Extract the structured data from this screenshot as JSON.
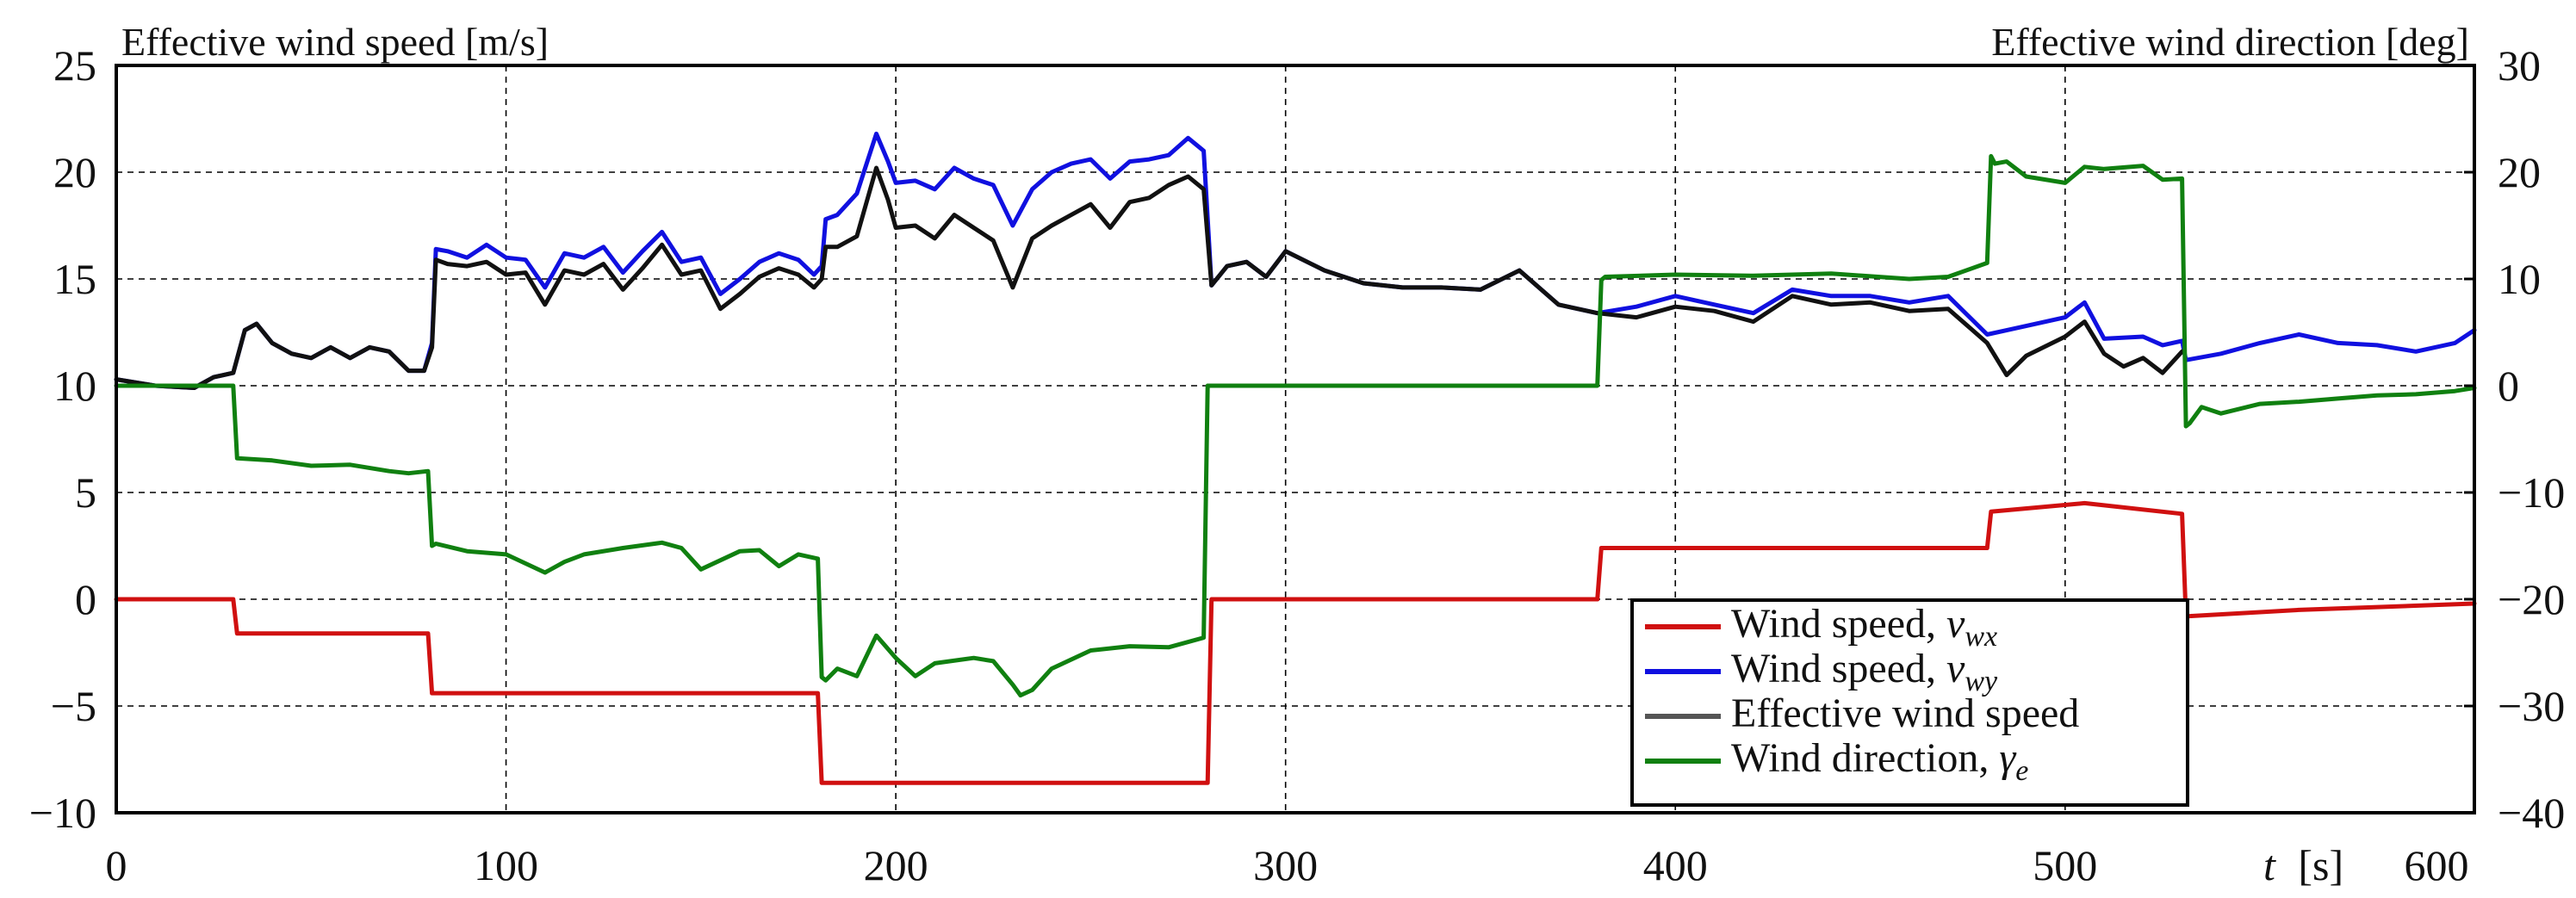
{
  "chart_data": {
    "type": "line",
    "title": "",
    "xlabel_var": "t",
    "xlabel_unit": "[s]",
    "ylabel_left": "Effective wind speed [m/s]",
    "ylabel_right": "Effective wind direction [deg]",
    "xlim": [
      0,
      605
    ],
    "ylim_left": [
      -10,
      25
    ],
    "ylim_right": [
      -40,
      30
    ],
    "xticks": [
      "0",
      "100",
      "200",
      "300",
      "400",
      "500"
    ],
    "xtick_values": [
      0,
      100,
      200,
      300,
      400,
      500
    ],
    "xtick_extra": "600",
    "yticks_left": [
      "−10",
      "−5",
      "0",
      "5",
      "10",
      "15",
      "20",
      "25"
    ],
    "ytick_left_values": [
      -10,
      -5,
      0,
      5,
      10,
      15,
      20,
      25
    ],
    "yticks_right": [
      "−40",
      "−30",
      "−20",
      "−10",
      "0",
      "10",
      "20",
      "30"
    ],
    "ytick_right_values": [
      -40,
      -30,
      -20,
      -10,
      0,
      10,
      20,
      30
    ],
    "grid": true,
    "legend_position": "bottom-right",
    "legend": [
      {
        "text": "Wind speed, ",
        "sym": "v",
        "sub": "wx",
        "color": "#d01010"
      },
      {
        "text": "Wind speed, ",
        "sym": "v",
        "sub": "wy",
        "color": "#1010e0"
      },
      {
        "text": "Effective wind speed",
        "sym": "",
        "sub": "",
        "color": "#555555"
      },
      {
        "text": "Wind direction, ",
        "sym": "γ",
        "sub": "e",
        "color": "#108010"
      }
    ],
    "series": [
      {
        "name": "Wind speed, v_wx",
        "color": "#d01010",
        "axis": "left",
        "x": [
          0,
          30,
          31,
          80,
          81,
          180,
          181,
          280,
          281,
          380,
          381,
          480,
          481,
          505,
          530,
          531,
          560,
          605
        ],
        "y": [
          0,
          0,
          -1.6,
          -1.6,
          -4.4,
          -4.4,
          -8.6,
          -8.6,
          0,
          0,
          2.4,
          2.4,
          4.1,
          4.5,
          4.0,
          -0.8,
          -0.5,
          -0.2
        ]
      },
      {
        "name": "Wind speed, v_wy",
        "color": "#1010e0",
        "axis": "left",
        "x": [
          0,
          10,
          20,
          25,
          30,
          33,
          36,
          40,
          45,
          50,
          55,
          60,
          65,
          70,
          75,
          79,
          81,
          82,
          85,
          90,
          95,
          100,
          105,
          110,
          115,
          120,
          125,
          130,
          135,
          140,
          145,
          150,
          155,
          160,
          165,
          170,
          175,
          179,
          181,
          182,
          185,
          190,
          195,
          198,
          200,
          205,
          210,
          215,
          220,
          225,
          230,
          235,
          240,
          245,
          250,
          255,
          260,
          265,
          270,
          275,
          279,
          281,
          285,
          290,
          295,
          300,
          310,
          320,
          330,
          340,
          350,
          360,
          370,
          380,
          390,
          400,
          410,
          420,
          430,
          440,
          450,
          460,
          470,
          480,
          490,
          500,
          505,
          510,
          520,
          525,
          530,
          531,
          540,
          550,
          560,
          570,
          580,
          590,
          600,
          605
        ],
        "y": [
          10.3,
          10.0,
          9.9,
          10.4,
          10.6,
          12.6,
          12.9,
          12.0,
          11.5,
          11.3,
          11.8,
          11.3,
          11.8,
          11.6,
          10.7,
          10.7,
          12.0,
          16.4,
          16.3,
          16.0,
          16.6,
          16.0,
          15.9,
          14.6,
          16.2,
          16.0,
          16.5,
          15.3,
          16.3,
          17.2,
          15.8,
          16.0,
          14.3,
          15.0,
          15.8,
          16.2,
          15.9,
          15.2,
          15.6,
          17.8,
          18.0,
          19.0,
          21.8,
          20.5,
          19.5,
          19.6,
          19.2,
          20.2,
          19.7,
          19.4,
          17.5,
          19.2,
          20.0,
          20.4,
          20.6,
          19.7,
          20.5,
          20.6,
          20.8,
          21.6,
          21.0,
          14.7,
          15.6,
          15.8,
          15.1,
          16.3,
          15.4,
          14.8,
          14.6,
          14.6,
          14.5,
          15.4,
          13.8,
          13.4,
          13.7,
          14.2,
          13.8,
          13.4,
          14.5,
          14.2,
          14.2,
          13.9,
          14.2,
          12.4,
          12.8,
          13.2,
          13.9,
          12.2,
          12.3,
          11.9,
          12.1,
          11.2,
          11.5,
          12.0,
          12.4,
          12.0,
          11.9,
          11.6,
          12.0,
          12.6
        ]
      },
      {
        "name": "Effective wind speed",
        "color": "#111111",
        "axis": "left",
        "x": [
          0,
          10,
          20,
          25,
          30,
          33,
          36,
          40,
          45,
          50,
          55,
          60,
          65,
          70,
          75,
          79,
          81,
          82,
          85,
          90,
          95,
          100,
          105,
          110,
          115,
          120,
          125,
          130,
          135,
          140,
          145,
          150,
          155,
          160,
          165,
          170,
          175,
          179,
          181,
          182,
          185,
          190,
          195,
          198,
          200,
          205,
          210,
          215,
          220,
          225,
          230,
          235,
          240,
          245,
          250,
          255,
          260,
          265,
          270,
          275,
          279,
          281,
          285,
          290,
          295,
          300,
          310,
          320,
          330,
          340,
          350,
          360,
          370,
          380,
          390,
          400,
          410,
          420,
          430,
          440,
          450,
          460,
          470,
          480,
          485,
          490,
          500,
          505,
          510,
          515,
          520,
          525,
          530
        ],
        "y": [
          10.3,
          10.0,
          9.9,
          10.4,
          10.6,
          12.6,
          12.9,
          12.0,
          11.5,
          11.3,
          11.8,
          11.3,
          11.8,
          11.6,
          10.7,
          10.7,
          11.8,
          15.9,
          15.7,
          15.6,
          15.8,
          15.2,
          15.3,
          13.8,
          15.4,
          15.2,
          15.7,
          14.5,
          15.5,
          16.6,
          15.2,
          15.4,
          13.6,
          14.3,
          15.1,
          15.5,
          15.2,
          14.6,
          15.0,
          16.5,
          16.5,
          17.0,
          20.2,
          18.7,
          17.4,
          17.5,
          16.9,
          18.0,
          17.4,
          16.8,
          14.6,
          16.9,
          17.5,
          18.0,
          18.5,
          17.4,
          18.6,
          18.8,
          19.4,
          19.8,
          19.2,
          14.7,
          15.6,
          15.8,
          15.1,
          16.3,
          15.4,
          14.8,
          14.6,
          14.6,
          14.5,
          15.4,
          13.8,
          13.4,
          13.2,
          13.7,
          13.5,
          13.0,
          14.2,
          13.8,
          13.9,
          13.5,
          13.6,
          12.0,
          10.5,
          11.4,
          12.3,
          13.0,
          11.5,
          10.9,
          11.3,
          10.6,
          11.6
        ]
      },
      {
        "name": "Wind direction, γe",
        "color": "#108010",
        "axis": "right",
        "x": [
          0,
          30,
          31,
          40,
          50,
          60,
          70,
          75,
          80,
          81,
          82,
          90,
          100,
          110,
          115,
          120,
          130,
          140,
          145,
          150,
          160,
          165,
          170,
          175,
          180,
          181,
          182,
          185,
          190,
          195,
          200,
          205,
          210,
          220,
          225,
          230,
          232,
          235,
          240,
          250,
          260,
          270,
          279,
          280,
          281,
          300,
          340,
          380,
          381,
          382,
          400,
          420,
          440,
          460,
          470,
          480,
          481,
          482,
          485,
          490,
          500,
          505,
          510,
          520,
          525,
          530,
          531,
          532,
          535,
          540,
          550,
          560,
          570,
          580,
          590,
          600,
          605
        ],
        "y": [
          0,
          0,
          -6.8,
          -7.0,
          -7.5,
          -7.4,
          -8.0,
          -8.2,
          -8.0,
          -15.0,
          -14.8,
          -15.5,
          -15.8,
          -17.5,
          -16.5,
          -15.8,
          -15.2,
          -14.7,
          -15.2,
          -17.2,
          -15.5,
          -15.4,
          -16.9,
          -15.8,
          -16.2,
          -27.3,
          -27.6,
          -26.5,
          -27.2,
          -23.4,
          -25.5,
          -27.2,
          -26.0,
          -25.5,
          -25.8,
          -28.0,
          -29.0,
          -28.5,
          -26.5,
          -24.8,
          -24.4,
          -24.5,
          -23.6,
          0,
          0,
          0,
          0,
          0,
          9.9,
          10.2,
          10.4,
          10.3,
          10.5,
          10.0,
          10.2,
          11.5,
          21.5,
          20.8,
          21.0,
          19.6,
          19.0,
          20.5,
          20.3,
          20.6,
          19.3,
          19.4,
          -3.8,
          -3.5,
          -2.0,
          -2.6,
          -1.7,
          -1.5,
          -1.2,
          -0.9,
          -0.8,
          -0.5,
          -0.2
        ]
      }
    ]
  }
}
